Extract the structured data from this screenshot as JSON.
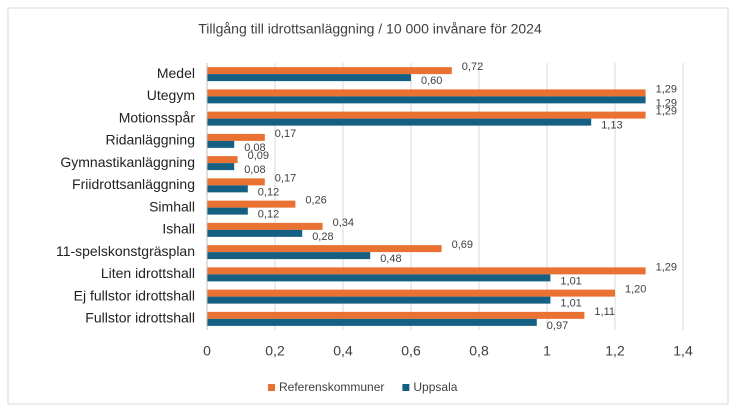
{
  "chart_data": {
    "type": "hbar",
    "title": "Tillgång till idrottsanläggning / 10 000 invånare för 2024",
    "categories": [
      "Medel",
      "Utegym",
      "Motionsspår",
      "Ridanläggning",
      "Gymnastikanläggning",
      "Friidrottsanläggning",
      "Simhall",
      "Ishall",
      "11-spelskonstgräsplan",
      "Liten idrottshall",
      "Ej fullstor idrottshall",
      "Fullstor idrottshall"
    ],
    "series": [
      {
        "name": "Referenskommuner",
        "color": "#e97132",
        "values": [
          0.72,
          1.29,
          1.29,
          0.17,
          0.09,
          0.17,
          0.26,
          0.34,
          0.69,
          1.29,
          1.2,
          1.11
        ],
        "value_labels": [
          "0,72",
          "1,29",
          "1,29",
          "0,17",
          "0,09",
          "0,17",
          "0,26",
          "0,34",
          "0,69",
          "1,29",
          "1,20",
          "1,11"
        ]
      },
      {
        "name": "Uppsala",
        "color": "#156082",
        "values": [
          0.6,
          1.29,
          1.13,
          0.08,
          0.08,
          0.12,
          0.12,
          0.28,
          0.48,
          1.01,
          1.01,
          0.97
        ],
        "value_labels": [
          "0,60",
          "1,29",
          "1,13",
          "0,08",
          "0,08",
          "0,12",
          "0,12",
          "0,28",
          "0,48",
          "1,01",
          "1,01",
          "0,97"
        ]
      }
    ],
    "xlim": [
      0,
      1.4
    ],
    "xticks": [
      0,
      {
        "value": 0.2,
        "label": "0,2"
      },
      {
        "value": 0.4,
        "label": "0,4"
      },
      {
        "value": 0.6,
        "label": "0,6"
      },
      {
        "value": 0.8,
        "label": "0,8"
      },
      1,
      {
        "value": 1.2,
        "label": "1,2"
      },
      {
        "value": 1.4,
        "label": "1,4"
      }
    ],
    "grid": true,
    "legend": "bottom"
  }
}
